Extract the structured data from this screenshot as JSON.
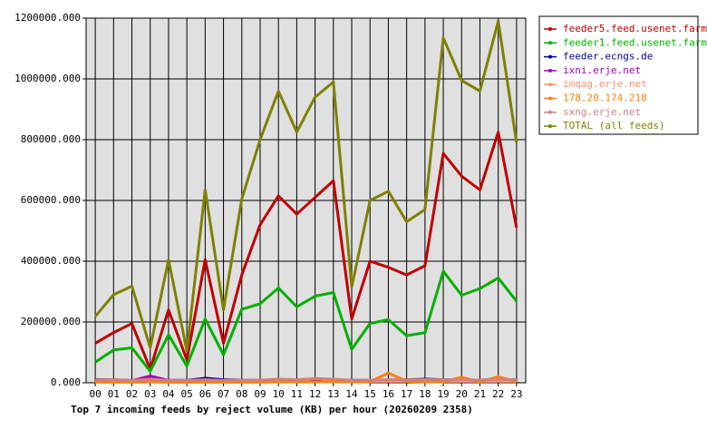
{
  "chart_data": {
    "type": "line",
    "title": "Top 7 incoming feeds by reject volume (KB) per hour (20260209 2358)",
    "categories": [
      "00",
      "01",
      "02",
      "03",
      "04",
      "05",
      "06",
      "07",
      "08",
      "09",
      "10",
      "11",
      "12",
      "13",
      "14",
      "15",
      "16",
      "17",
      "18",
      "19",
      "20",
      "21",
      "22",
      "23"
    ],
    "ylim": [
      0,
      1200000
    ],
    "yticks": [
      {
        "value": 0,
        "label": "0.000"
      },
      {
        "value": 200000,
        "label": "200000.000"
      },
      {
        "value": 400000,
        "label": "400000.000"
      },
      {
        "value": 600000,
        "label": "600000.000"
      },
      {
        "value": 800000,
        "label": "800000.000"
      },
      {
        "value": 1000000,
        "label": "1000000.000"
      },
      {
        "value": 1200000,
        "label": "1200000.000"
      }
    ],
    "grid": true,
    "legend": "right",
    "series": [
      {
        "name": "feeder5.feed.usenet.farm",
        "color": "#c00000",
        "values": [
          130000,
          165000,
          195000,
          45000,
          240000,
          75000,
          405000,
          130000,
          355000,
          520000,
          615000,
          555000,
          610000,
          665000,
          210000,
          400000,
          380000,
          355000,
          385000,
          755000,
          680000,
          635000,
          825000,
          510000
        ]
      },
      {
        "name": "feeder1.feed.usenet.farm",
        "color": "#00b000",
        "values": [
          68000,
          108000,
          115000,
          38000,
          158000,
          55000,
          210000,
          92000,
          242000,
          260000,
          312000,
          250000,
          285000,
          297000,
          110000,
          195000,
          208000,
          155000,
          165000,
          367000,
          288000,
          310000,
          345000,
          268000
        ]
      },
      {
        "name": "feeder.ecngs.de",
        "color": "#0000a0",
        "values": [
          10000,
          10000,
          8000,
          8000,
          8000,
          8000,
          15000,
          10000,
          8000,
          8000,
          8000,
          9000,
          10000,
          10000,
          8000,
          8000,
          9000,
          10000,
          12000,
          10000,
          9000,
          9000,
          10000,
          10000
        ]
      },
      {
        "name": "ixni.erje.net",
        "color": "#a000c0",
        "values": [
          8000,
          8000,
          7000,
          22000,
          8000,
          8000,
          8000,
          8000,
          8000,
          8000,
          8000,
          8000,
          10000,
          10000,
          8000,
          8000,
          8000,
          8000,
          8000,
          8000,
          8000,
          8000,
          8000,
          8000
        ]
      },
      {
        "name": "imqag.erje.net",
        "color": "#ff9070",
        "values": [
          4000,
          4000,
          4000,
          4000,
          4000,
          4000,
          4000,
          4000,
          4000,
          4000,
          5000,
          6000,
          15000,
          8000,
          5000,
          5000,
          5000,
          5000,
          5000,
          5000,
          5000,
          5000,
          5000,
          5000
        ]
      },
      {
        "name": "178.20.174.218",
        "color": "#ff8000",
        "values": [
          2000,
          2000,
          2000,
          3000,
          2000,
          2000,
          2000,
          2000,
          2000,
          2000,
          3000,
          3000,
          3000,
          3000,
          3000,
          3000,
          32000,
          5000,
          3000,
          3000,
          18000,
          3000,
          20000,
          3000
        ]
      },
      {
        "name": "sxng.erje.net",
        "color": "#d08080",
        "values": [
          9000,
          10000,
          8000,
          12000,
          8000,
          8000,
          10000,
          8000,
          8000,
          9000,
          12000,
          10000,
          14000,
          12000,
          8000,
          9000,
          10000,
          10000,
          10000,
          10000,
          10000,
          9000,
          12000,
          10000
        ]
      },
      {
        "name": "TOTAL (all feeds)",
        "color": "#808000",
        "values": [
          218000,
          290000,
          318000,
          115000,
          405000,
          105000,
          635000,
          240000,
          605000,
          800000,
          960000,
          825000,
          940000,
          990000,
          315000,
          600000,
          630000,
          530000,
          570000,
          1135000,
          995000,
          960000,
          1190000,
          790000
        ]
      }
    ]
  }
}
